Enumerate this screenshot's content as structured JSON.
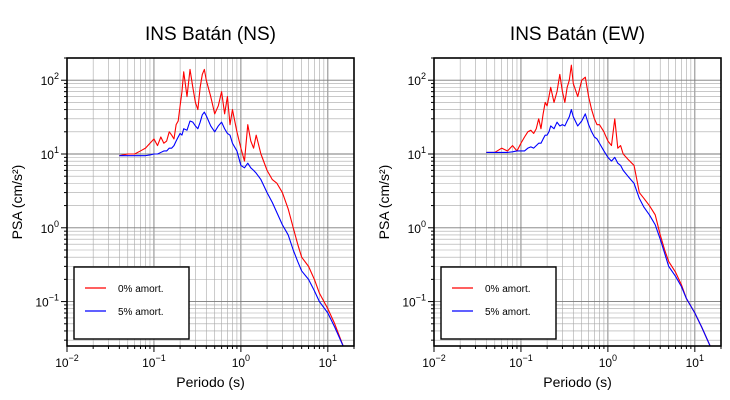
{
  "chart_data": [
    {
      "type": "line",
      "title": "INS Batán (NS)",
      "xlabel": "Periodo (s)",
      "ylabel": "PSA (cm/s²)",
      "xscale": "log",
      "yscale": "log",
      "xlim": [
        0.01,
        20
      ],
      "ylim": [
        0.025,
        200
      ],
      "grid": true,
      "legend_position": "bottom-left",
      "colors": {
        "0% amort.": "#ff0000",
        "5% amort.": "#0000ff"
      },
      "series": [
        {
          "name": "0% amort.",
          "color": "#ff0000",
          "x": [
            0.04,
            0.05,
            0.06,
            0.07,
            0.08,
            0.09,
            0.1,
            0.11,
            0.12,
            0.13,
            0.14,
            0.15,
            0.16,
            0.17,
            0.18,
            0.19,
            0.2,
            0.21,
            0.22,
            0.24,
            0.26,
            0.28,
            0.3,
            0.32,
            0.34,
            0.36,
            0.38,
            0.4,
            0.45,
            0.5,
            0.55,
            0.6,
            0.65,
            0.7,
            0.75,
            0.8,
            0.9,
            1.0,
            1.1,
            1.2,
            1.3,
            1.4,
            1.5,
            1.7,
            2.0,
            2.3,
            2.6,
            3.0,
            3.5,
            4.0,
            4.5,
            5.0,
            6.0,
            7.0,
            8.0,
            10.0,
            12.0,
            15.0
          ],
          "y": [
            9.5,
            10,
            10,
            11,
            12,
            14,
            16,
            13,
            17,
            14,
            15,
            20,
            18,
            16,
            25,
            28,
            45,
            70,
            130,
            60,
            140,
            80,
            50,
            40,
            80,
            120,
            140,
            100,
            60,
            35,
            45,
            70,
            35,
            60,
            25,
            40,
            20,
            12,
            8,
            25,
            15,
            12,
            18,
            10,
            6,
            4.5,
            4,
            3,
            1.8,
            1,
            0.6,
            0.4,
            0.3,
            0.2,
            0.13,
            0.08,
            0.05,
            0.025
          ]
        },
        {
          "name": "5% amort.",
          "color": "#0000ff",
          "x": [
            0.04,
            0.05,
            0.06,
            0.07,
            0.08,
            0.09,
            0.1,
            0.11,
            0.12,
            0.13,
            0.14,
            0.15,
            0.16,
            0.17,
            0.18,
            0.19,
            0.2,
            0.21,
            0.22,
            0.24,
            0.26,
            0.28,
            0.3,
            0.32,
            0.34,
            0.36,
            0.38,
            0.4,
            0.45,
            0.5,
            0.55,
            0.6,
            0.65,
            0.7,
            0.75,
            0.8,
            0.9,
            1.0,
            1.1,
            1.2,
            1.3,
            1.4,
            1.5,
            1.7,
            2.0,
            2.3,
            2.6,
            3.0,
            3.5,
            4.0,
            4.5,
            5.0,
            6.0,
            7.0,
            8.0,
            10.0,
            12.0,
            15.0
          ],
          "y": [
            9.5,
            9.5,
            9.5,
            9.5,
            9.5,
            9.7,
            10,
            10,
            10.5,
            11,
            11,
            12,
            12,
            13,
            15,
            17,
            19,
            18,
            22,
            21,
            28,
            27,
            24,
            22,
            27,
            34,
            37,
            33,
            24,
            20,
            24,
            27,
            22,
            19,
            18,
            14,
            11,
            7,
            6.5,
            7.5,
            6.5,
            6,
            5.5,
            4.5,
            3,
            2.2,
            1.6,
            1.1,
            0.8,
            0.5,
            0.35,
            0.26,
            0.2,
            0.14,
            0.1,
            0.07,
            0.045,
            0.025
          ]
        }
      ]
    },
    {
      "type": "line",
      "title": "INS Batán (EW)",
      "xlabel": "Periodo (s)",
      "ylabel": "PSA (cm/s²)",
      "xscale": "log",
      "yscale": "log",
      "xlim": [
        0.01,
        20
      ],
      "ylim": [
        0.025,
        200
      ],
      "grid": true,
      "legend_position": "bottom-left",
      "colors": {
        "0% amort.": "#ff0000",
        "5% amort.": "#0000ff"
      },
      "series": [
        {
          "name": "0% amort.",
          "color": "#ff0000",
          "x": [
            0.04,
            0.05,
            0.06,
            0.07,
            0.08,
            0.09,
            0.1,
            0.11,
            0.12,
            0.13,
            0.14,
            0.15,
            0.16,
            0.17,
            0.18,
            0.19,
            0.2,
            0.21,
            0.22,
            0.24,
            0.26,
            0.28,
            0.3,
            0.32,
            0.34,
            0.36,
            0.38,
            0.4,
            0.45,
            0.5,
            0.55,
            0.6,
            0.65,
            0.7,
            0.75,
            0.8,
            0.9,
            1.0,
            1.1,
            1.2,
            1.3,
            1.4,
            1.5,
            1.7,
            2.0,
            2.3,
            2.6,
            3.0,
            3.5,
            4.0,
            4.5,
            5.0,
            6.0,
            7.0,
            8.0,
            10.0,
            12.0,
            15.0
          ],
          "y": [
            10.5,
            10.5,
            12,
            11,
            13,
            11,
            14,
            17,
            20,
            21,
            19,
            22,
            30,
            22,
            35,
            50,
            45,
            60,
            80,
            50,
            70,
            120,
            70,
            50,
            80,
            100,
            160,
            90,
            60,
            100,
            110,
            60,
            40,
            30,
            25,
            25,
            20,
            15,
            13,
            30,
            12,
            13,
            10,
            8.5,
            7,
            3,
            2.5,
            2,
            1.5,
            0.8,
            0.5,
            0.35,
            0.25,
            0.17,
            0.11,
            0.07,
            0.045,
            0.025
          ]
        },
        {
          "name": "5% amort.",
          "color": "#0000ff",
          "x": [
            0.04,
            0.05,
            0.06,
            0.07,
            0.08,
            0.09,
            0.1,
            0.11,
            0.12,
            0.13,
            0.14,
            0.15,
            0.16,
            0.17,
            0.18,
            0.19,
            0.2,
            0.21,
            0.22,
            0.24,
            0.26,
            0.28,
            0.3,
            0.32,
            0.34,
            0.36,
            0.38,
            0.4,
            0.45,
            0.5,
            0.55,
            0.6,
            0.65,
            0.7,
            0.75,
            0.8,
            0.9,
            1.0,
            1.1,
            1.2,
            1.3,
            1.4,
            1.5,
            1.7,
            2.0,
            2.3,
            2.6,
            3.0,
            3.5,
            4.0,
            4.5,
            5.0,
            6.0,
            7.0,
            8.0,
            10.0,
            12.0,
            15.0
          ],
          "y": [
            10.5,
            10.5,
            10.5,
            10.5,
            10.7,
            11,
            11,
            11,
            12,
            12.5,
            12,
            13,
            14,
            14,
            16,
            18,
            18,
            20,
            24,
            22,
            27,
            24,
            25,
            24,
            28,
            32,
            40,
            32,
            24,
            28,
            35,
            25,
            20,
            17,
            16,
            14,
            11,
            9,
            8,
            9,
            7.5,
            7,
            6,
            5,
            4,
            2.5,
            1.9,
            1.5,
            1.1,
            0.7,
            0.45,
            0.3,
            0.22,
            0.16,
            0.11,
            0.07,
            0.045,
            0.025
          ]
        }
      ]
    }
  ]
}
